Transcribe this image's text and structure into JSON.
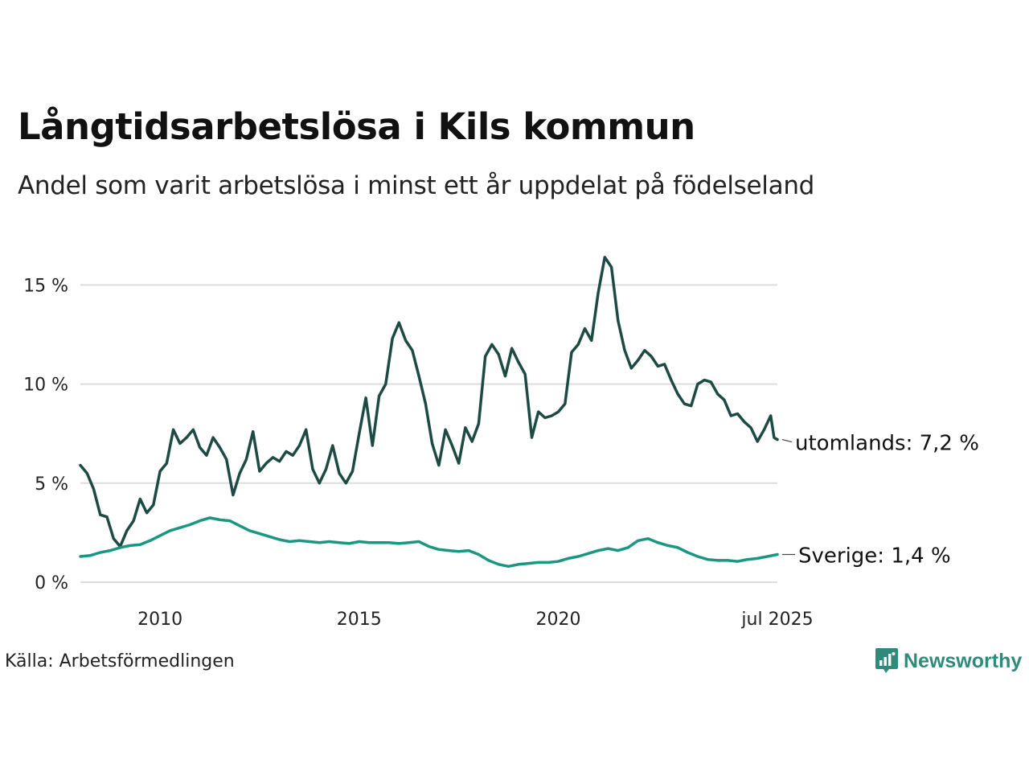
{
  "header": {
    "title": "Långtidsarbetslösa i Kils kommun",
    "subtitle": "Andel som varit arbetslösa i minst ett år uppdelat på födelseland"
  },
  "footer": {
    "source": "Källa: Arbetsförmedlingen",
    "brand": "Newsworthy"
  },
  "colors": {
    "utomlands": "#1e4a44",
    "sverige": "#1a9683",
    "grid": "#dddddd",
    "brand": "#2f8a7b"
  },
  "chart_data": {
    "type": "line",
    "title": "Långtidsarbetslösa i Kils kommun",
    "subtitle": "Andel som varit arbetslösa i minst ett år uppdelat på födelseland",
    "x_range": [
      "2008-01",
      "2025-07"
    ],
    "ylim": [
      0,
      16.8
    ],
    "y_ticks": [
      {
        "value": 0,
        "label": "0 %"
      },
      {
        "value": 5,
        "label": "5 %"
      },
      {
        "value": 10,
        "label": "10 %"
      },
      {
        "value": 15,
        "label": "15 %"
      }
    ],
    "x_ticks": [
      {
        "date": "2010-01",
        "label": "2010"
      },
      {
        "date": "2015-01",
        "label": "2015"
      },
      {
        "date": "2020-01",
        "label": "2020"
      },
      {
        "date": "2025-07",
        "label": "jul 2025"
      }
    ],
    "grid": true,
    "series": [
      {
        "name": "utomlands",
        "end_label": "utomlands: 7,2 %",
        "points": [
          [
            "2008-01",
            5.9
          ],
          [
            "2008-03",
            5.5
          ],
          [
            "2008-05",
            4.7
          ],
          [
            "2008-07",
            3.4
          ],
          [
            "2008-09",
            3.3
          ],
          [
            "2008-11",
            2.2
          ],
          [
            "2009-01",
            1.8
          ],
          [
            "2009-03",
            2.6
          ],
          [
            "2009-05",
            3.1
          ],
          [
            "2009-07",
            4.2
          ],
          [
            "2009-09",
            3.5
          ],
          [
            "2009-11",
            3.9
          ],
          [
            "2010-01",
            5.6
          ],
          [
            "2010-03",
            6.0
          ],
          [
            "2010-05",
            7.7
          ],
          [
            "2010-07",
            7.0
          ],
          [
            "2010-09",
            7.3
          ],
          [
            "2010-11",
            7.7
          ],
          [
            "2011-01",
            6.8
          ],
          [
            "2011-03",
            6.4
          ],
          [
            "2011-05",
            7.3
          ],
          [
            "2011-07",
            6.8
          ],
          [
            "2011-09",
            6.2
          ],
          [
            "2011-11",
            4.4
          ],
          [
            "2012-01",
            5.5
          ],
          [
            "2012-03",
            6.2
          ],
          [
            "2012-05",
            7.6
          ],
          [
            "2012-07",
            5.6
          ],
          [
            "2012-09",
            6.0
          ],
          [
            "2012-11",
            6.3
          ],
          [
            "2013-01",
            6.1
          ],
          [
            "2013-03",
            6.6
          ],
          [
            "2013-05",
            6.4
          ],
          [
            "2013-07",
            6.9
          ],
          [
            "2013-09",
            7.7
          ],
          [
            "2013-11",
            5.7
          ],
          [
            "2014-01",
            5.0
          ],
          [
            "2014-03",
            5.7
          ],
          [
            "2014-05",
            6.9
          ],
          [
            "2014-07",
            5.5
          ],
          [
            "2014-09",
            5.0
          ],
          [
            "2014-11",
            5.6
          ],
          [
            "2015-01",
            7.5
          ],
          [
            "2015-03",
            9.3
          ],
          [
            "2015-05",
            6.9
          ],
          [
            "2015-07",
            9.4
          ],
          [
            "2015-09",
            10.0
          ],
          [
            "2015-11",
            12.3
          ],
          [
            "2016-01",
            13.1
          ],
          [
            "2016-03",
            12.2
          ],
          [
            "2016-05",
            11.7
          ],
          [
            "2016-07",
            10.4
          ],
          [
            "2016-09",
            9.0
          ],
          [
            "2016-11",
            7.0
          ],
          [
            "2017-01",
            5.9
          ],
          [
            "2017-03",
            7.7
          ],
          [
            "2017-05",
            6.9
          ],
          [
            "2017-07",
            6.0
          ],
          [
            "2017-09",
            7.8
          ],
          [
            "2017-11",
            7.1
          ],
          [
            "2018-01",
            8.0
          ],
          [
            "2018-03",
            11.4
          ],
          [
            "2018-05",
            12.0
          ],
          [
            "2018-07",
            11.5
          ],
          [
            "2018-09",
            10.4
          ],
          [
            "2018-11",
            11.8
          ],
          [
            "2019-01",
            11.1
          ],
          [
            "2019-03",
            10.5
          ],
          [
            "2019-05",
            7.3
          ],
          [
            "2019-07",
            8.6
          ],
          [
            "2019-09",
            8.3
          ],
          [
            "2019-11",
            8.4
          ],
          [
            "2020-01",
            8.6
          ],
          [
            "2020-03",
            9.0
          ],
          [
            "2020-05",
            11.6
          ],
          [
            "2020-07",
            12.0
          ],
          [
            "2020-09",
            12.8
          ],
          [
            "2020-11",
            12.2
          ],
          [
            "2021-01",
            14.6
          ],
          [
            "2021-03",
            16.4
          ],
          [
            "2021-05",
            15.9
          ],
          [
            "2021-07",
            13.2
          ],
          [
            "2021-09",
            11.7
          ],
          [
            "2021-11",
            10.8
          ],
          [
            "2022-01",
            11.2
          ],
          [
            "2022-03",
            11.7
          ],
          [
            "2022-05",
            11.4
          ],
          [
            "2022-07",
            10.9
          ],
          [
            "2022-09",
            11.0
          ],
          [
            "2022-11",
            10.2
          ],
          [
            "2023-01",
            9.5
          ],
          [
            "2023-03",
            9.0
          ],
          [
            "2023-05",
            8.9
          ],
          [
            "2023-07",
            10.0
          ],
          [
            "2023-09",
            10.2
          ],
          [
            "2023-11",
            10.1
          ],
          [
            "2024-01",
            9.5
          ],
          [
            "2024-03",
            9.2
          ],
          [
            "2024-05",
            8.4
          ],
          [
            "2024-07",
            8.5
          ],
          [
            "2024-09",
            8.1
          ],
          [
            "2024-11",
            7.8
          ],
          [
            "2025-01",
            7.1
          ],
          [
            "2025-03",
            7.7
          ],
          [
            "2025-05",
            8.4
          ],
          [
            "2025-06",
            7.3
          ],
          [
            "2025-07",
            7.2
          ]
        ]
      },
      {
        "name": "Sverige",
        "end_label": "Sverige: 1,4 %",
        "points": [
          [
            "2008-01",
            1.3
          ],
          [
            "2008-04",
            1.35
          ],
          [
            "2008-07",
            1.5
          ],
          [
            "2008-10",
            1.6
          ],
          [
            "2009-01",
            1.75
          ],
          [
            "2009-04",
            1.85
          ],
          [
            "2009-07",
            1.9
          ],
          [
            "2009-10",
            2.1
          ],
          [
            "2010-01",
            2.35
          ],
          [
            "2010-04",
            2.6
          ],
          [
            "2010-07",
            2.75
          ],
          [
            "2010-10",
            2.9
          ],
          [
            "2011-01",
            3.1
          ],
          [
            "2011-04",
            3.25
          ],
          [
            "2011-07",
            3.15
          ],
          [
            "2011-10",
            3.1
          ],
          [
            "2012-01",
            2.85
          ],
          [
            "2012-04",
            2.6
          ],
          [
            "2012-07",
            2.45
          ],
          [
            "2012-10",
            2.3
          ],
          [
            "2013-01",
            2.15
          ],
          [
            "2013-04",
            2.05
          ],
          [
            "2013-07",
            2.1
          ],
          [
            "2013-10",
            2.05
          ],
          [
            "2014-01",
            2.0
          ],
          [
            "2014-04",
            2.05
          ],
          [
            "2014-07",
            2.0
          ],
          [
            "2014-10",
            1.95
          ],
          [
            "2015-01",
            2.05
          ],
          [
            "2015-04",
            2.0
          ],
          [
            "2015-07",
            2.0
          ],
          [
            "2015-10",
            2.0
          ],
          [
            "2016-01",
            1.95
          ],
          [
            "2016-04",
            2.0
          ],
          [
            "2016-07",
            2.05
          ],
          [
            "2016-10",
            1.8
          ],
          [
            "2017-01",
            1.65
          ],
          [
            "2017-04",
            1.6
          ],
          [
            "2017-07",
            1.55
          ],
          [
            "2017-10",
            1.6
          ],
          [
            "2018-01",
            1.4
          ],
          [
            "2018-04",
            1.1
          ],
          [
            "2018-07",
            0.9
          ],
          [
            "2018-10",
            0.8
          ],
          [
            "2019-01",
            0.9
          ],
          [
            "2019-04",
            0.95
          ],
          [
            "2019-07",
            1.0
          ],
          [
            "2019-10",
            1.0
          ],
          [
            "2020-01",
            1.05
          ],
          [
            "2020-04",
            1.2
          ],
          [
            "2020-07",
            1.3
          ],
          [
            "2020-10",
            1.45
          ],
          [
            "2021-01",
            1.6
          ],
          [
            "2021-04",
            1.7
          ],
          [
            "2021-07",
            1.6
          ],
          [
            "2021-10",
            1.75
          ],
          [
            "2022-01",
            2.1
          ],
          [
            "2022-04",
            2.2
          ],
          [
            "2022-07",
            2.0
          ],
          [
            "2022-10",
            1.85
          ],
          [
            "2023-01",
            1.75
          ],
          [
            "2023-04",
            1.5
          ],
          [
            "2023-07",
            1.3
          ],
          [
            "2023-10",
            1.15
          ],
          [
            "2024-01",
            1.1
          ],
          [
            "2024-04",
            1.1
          ],
          [
            "2024-07",
            1.05
          ],
          [
            "2024-10",
            1.15
          ],
          [
            "2025-01",
            1.2
          ],
          [
            "2025-04",
            1.3
          ],
          [
            "2025-07",
            1.4
          ]
        ]
      }
    ]
  }
}
